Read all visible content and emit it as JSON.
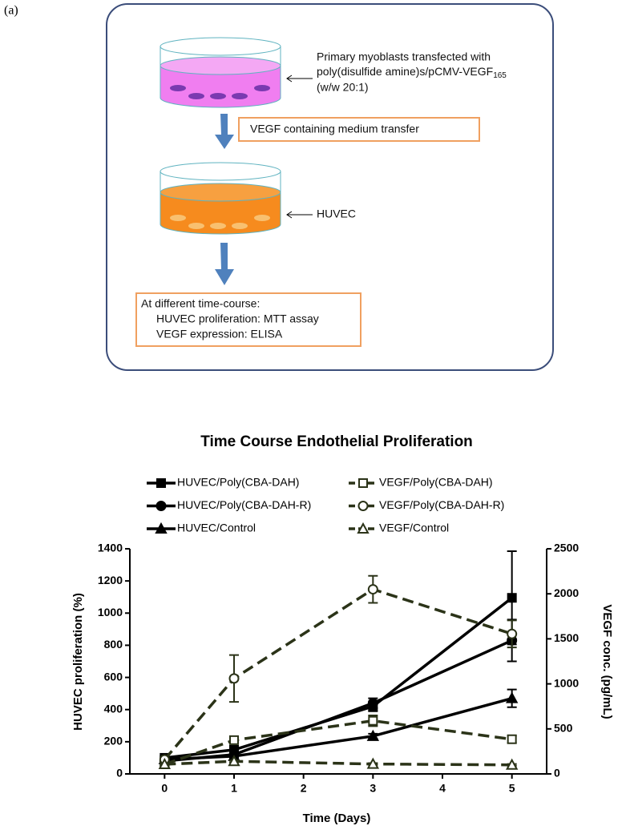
{
  "panel_label": "(a)",
  "diagram": {
    "step1": [
      "Primary myoblasts transfected with",
      "poly(disulfide amine)s/pCMV-VEGF",
      "165",
      "(w/w 20:1)"
    ],
    "transfer": "VEGF containing medium transfer",
    "cell": "HUVEC",
    "assay": [
      "At different time-course:",
      "HUVEC proliferation: MTT assay",
      "VEGF expression: ELISA"
    ]
  },
  "chart_data": {
    "type": "line",
    "title": "Time Course Endothelial Proliferation",
    "x_label": "Time (Days)",
    "y_label": "HUVEC proliferation (%)",
    "y2_label": "VEGF conc. (pg/mL)",
    "x": [
      0,
      1,
      3,
      5
    ],
    "xlim": [
      -0.5,
      5.5
    ],
    "xticks": [
      0,
      1,
      2,
      3,
      4,
      5
    ],
    "ylim": [
      0,
      1400
    ],
    "yticks": [
      0,
      200,
      400,
      600,
      800,
      1000,
      1200,
      1400
    ],
    "y2lim": [
      0,
      2500
    ],
    "y2ticks": [
      0,
      500,
      1000,
      1500,
      2000,
      2500
    ],
    "series": [
      {
        "name": "HUVEC/Poly(CBA-DAH)",
        "color": "#000000",
        "marker": "square",
        "dashed": false,
        "values": [
          100,
          150,
          420,
          1095
        ],
        "errors": [
          10,
          20,
          30,
          290
        ]
      },
      {
        "name": "HUVEC/Poly(CBA-DAH-R)",
        "color": "#000000",
        "marker": "circle",
        "dashed": false,
        "values": [
          80,
          120,
          440,
          830
        ],
        "errors": [
          10,
          15,
          30,
          130
        ]
      },
      {
        "name": "HUVEC/Control",
        "color": "#000000",
        "marker": "triangle",
        "dashed": false,
        "values": [
          90,
          110,
          235,
          470
        ],
        "errors": [
          10,
          10,
          15,
          55
        ]
      },
      {
        "name": "VEGF/Poly(CBA-DAH)",
        "color": "#2b3318",
        "marker": "open-square",
        "dashed": true,
        "axis": "y2",
        "values": [
          107,
          375,
          590,
          385
        ],
        "errors": [
          20,
          40,
          60,
          40
        ]
      },
      {
        "name": "VEGF/Poly(CBA-DAH-R)",
        "color": "#2b3318",
        "marker": "open-circle",
        "dashed": true,
        "axis": "y2",
        "values": [
          160,
          1060,
          2050,
          1555
        ],
        "errors": [
          20,
          260,
          150,
          150
        ]
      },
      {
        "name": "VEGF/Control",
        "color": "#2b3318",
        "marker": "open-triangle",
        "dashed": true,
        "axis": "y2",
        "values": [
          107,
          140,
          110,
          100
        ],
        "errors": [
          10,
          10,
          10,
          10
        ]
      }
    ]
  }
}
